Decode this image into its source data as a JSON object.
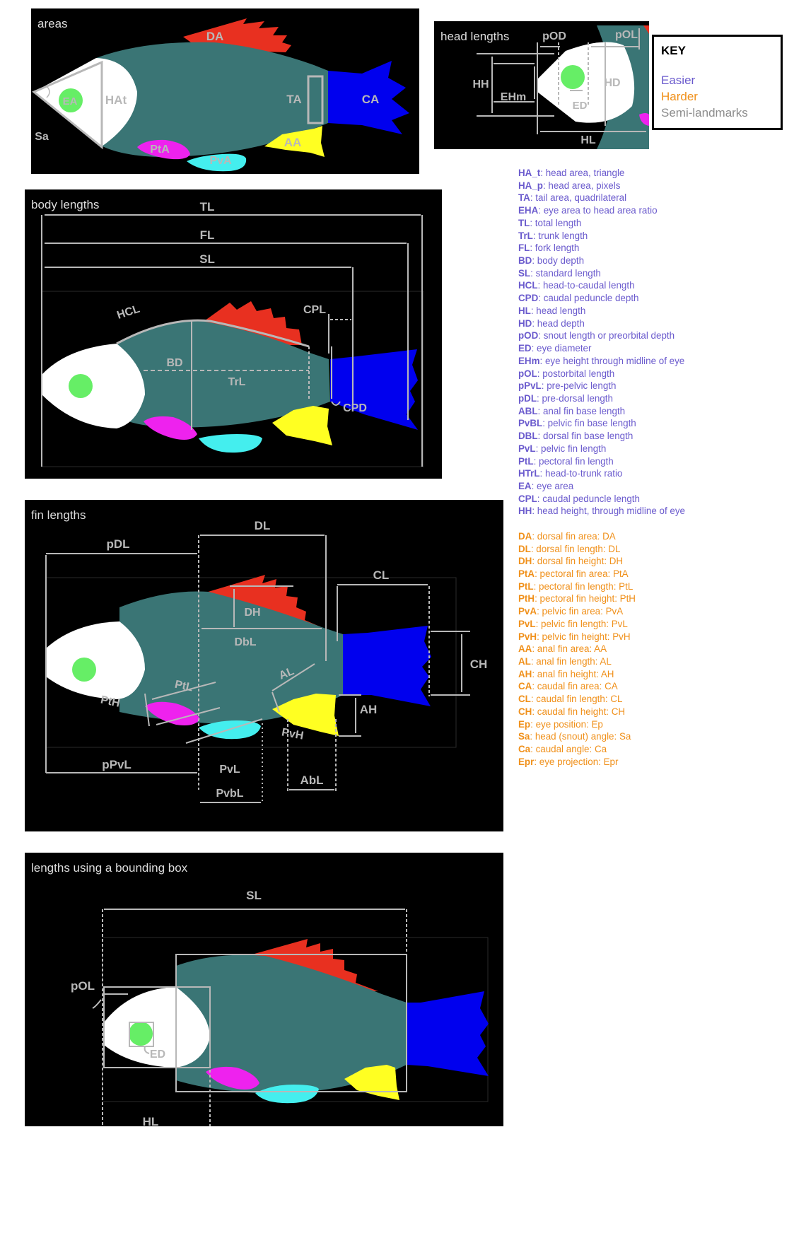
{
  "panels": {
    "areas": {
      "title": "areas",
      "labels": {
        "DA": "DA",
        "HAt": "HAt",
        "EA": "EA",
        "Sa": "Sa",
        "TA": "TA",
        "CA": "CA",
        "AA": "AA",
        "PtA": "PtA",
        "PvA": "PvA"
      }
    },
    "head": {
      "title": "head lengths",
      "labels": {
        "pOD": "pOD",
        "pOL": "pOL",
        "HH": "HH",
        "EHm": "EHm",
        "HD": "HD",
        "ED": "ED",
        "HL": "HL"
      }
    },
    "body": {
      "title": "body lengths",
      "labels": {
        "TL": "TL",
        "FL": "FL",
        "SL": "SL",
        "HCL": "HCL",
        "CPL": "CPL",
        "BD": "BD",
        "TrL": "TrL",
        "CPD": "CPD"
      }
    },
    "fin": {
      "title": "fin lengths",
      "labels": {
        "pDL": "pDL",
        "DL": "DL",
        "CL": "CL",
        "DH": "DH",
        "DbL": "DbL",
        "CH": "CH",
        "PtL": "PtL",
        "AL": "AL",
        "PtH": "PtH",
        "AH": "AH",
        "PvH": "PvH",
        "PvL": "PvL",
        "pPvL": "pPvL",
        "AbL": "AbL",
        "PvbL": "PvbL"
      }
    },
    "bbox": {
      "title": "lengths using a bounding box",
      "labels": {
        "SL": "SL",
        "pOL": "pOL",
        "ED": "ED",
        "HL": "HL"
      }
    }
  },
  "key": {
    "title": "KEY",
    "items": [
      {
        "label": "Easier",
        "color": "#6a5acd"
      },
      {
        "label": "Harder",
        "color": "#f0901a"
      },
      {
        "label": "Semi-landmarks",
        "color": "#8c8c8c"
      }
    ]
  },
  "legend_easier": [
    {
      "abbr": "HA_t",
      "desc": ": head area, triangle"
    },
    {
      "abbr": "HA_p",
      "desc": ": head area, pixels"
    },
    {
      "abbr": "TA",
      "desc": ": tail area, quadrilateral"
    },
    {
      "abbr": "EHA",
      "desc": ": eye area to head area ratio"
    },
    {
      "abbr": "TL",
      "desc": ": total length"
    },
    {
      "abbr": "TrL",
      "desc": ": trunk length"
    },
    {
      "abbr": "FL",
      "desc": ": fork length"
    },
    {
      "abbr": "BD",
      "desc": ": body depth"
    },
    {
      "abbr": "SL",
      "desc": ": standard length"
    },
    {
      "abbr": "HCL",
      "desc": ": head-to-caudal length"
    },
    {
      "abbr": "CPD",
      "desc": ": caudal peduncle depth"
    },
    {
      "abbr": "HL",
      "desc": ": head length"
    },
    {
      "abbr": "HD",
      "desc": ": head depth"
    },
    {
      "abbr": "pOD",
      "desc": ": snout length or preorbital depth"
    },
    {
      "abbr": "ED",
      "desc": ": eye diameter"
    },
    {
      "abbr": "EHm",
      "desc": ": eye height through midline of eye"
    },
    {
      "abbr": "pOL",
      "desc": ": postorbital length"
    },
    {
      "abbr": "pPvL",
      "desc": ": pre-pelvic length"
    },
    {
      "abbr": "pDL",
      "desc": ": pre-dorsal length"
    },
    {
      "abbr": "ABL",
      "desc": ": anal fin base length"
    },
    {
      "abbr": "PvBL",
      "desc": ": pelvic fin base length"
    },
    {
      "abbr": "DBL",
      "desc": ": dorsal fin base length"
    },
    {
      "abbr": "PvL",
      "desc": ": pelvic fin length"
    },
    {
      "abbr": "PtL",
      "desc": ": pectoral fin length"
    },
    {
      "abbr": "HTrL",
      "desc": ": head-to-trunk ratio"
    },
    {
      "abbr": "EA",
      "desc": ": eye area"
    },
    {
      "abbr": "CPL",
      "desc": ": caudal peduncle length"
    },
    {
      "abbr": "HH",
      "desc": ": head height, through midline of eye"
    }
  ],
  "legend_harder": [
    {
      "abbr": "DA",
      "desc": ": dorsal fin area: DA"
    },
    {
      "abbr": "DL",
      "desc": ": dorsal fin length: DL"
    },
    {
      "abbr": "DH",
      "desc": ": dorsal fin height: DH"
    },
    {
      "abbr": "PtA",
      "desc": ": pectoral fin area: PtA"
    },
    {
      "abbr": "PtL",
      "desc": ": pectoral fin length: PtL"
    },
    {
      "abbr": "PtH",
      "desc": ": pectoral fin height: PtH"
    },
    {
      "abbr": "PvA",
      "desc": ": pelvic fin area: PvA"
    },
    {
      "abbr": "PvL",
      "desc": ": pelvic fin length: PvL"
    },
    {
      "abbr": "PvH",
      "desc": ": pelvic fin height: PvH"
    },
    {
      "abbr": "AA",
      "desc": ": anal fin area: AA"
    },
    {
      "abbr": "AL",
      "desc": ": anal fin length: AL"
    },
    {
      "abbr": "AH",
      "desc": ": anal fin height: AH"
    },
    {
      "abbr": "CA",
      "desc": ": caudal fin area: CA"
    },
    {
      "abbr": "CL",
      "desc": ": caudal fin length: CL"
    },
    {
      "abbr": "CH",
      "desc": ": caudal fin height: CH"
    },
    {
      "abbr": "Ep",
      "desc": ": eye position: Ep"
    },
    {
      "abbr": "Sa",
      "desc": ": head (snout) angle: Sa"
    },
    {
      "abbr": "Ca",
      "desc": ": caudal angle: Ca"
    },
    {
      "abbr": "Epr",
      "desc": ": eye projection: Epr"
    }
  ],
  "colors": {
    "body": "#3a7575",
    "head": "#ffffff",
    "eye": "#66ee66",
    "dorsal": "#e83020",
    "caudal": "#0000ee",
    "anal": "#ffff22",
    "pectoral": "#ee22ee",
    "pelvic": "#44eeee",
    "line": "#b8b8b8",
    "easier": "#6a5acd",
    "harder": "#f0901a"
  }
}
